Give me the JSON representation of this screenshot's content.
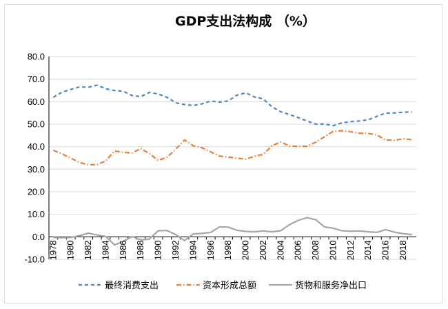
{
  "chart_data": {
    "type": "line",
    "title": "GDP支出法构成 （%）",
    "xlabel": "",
    "ylabel": "",
    "ylim": [
      -10,
      80
    ],
    "yticks": [
      "80.0",
      "70.0",
      "60.0",
      "50.0",
      "40.0",
      "30.0",
      "20.0",
      "10.0",
      "0.0",
      "-10.0"
    ],
    "xlim": [
      1978,
      2019
    ],
    "xticks": [
      "1978",
      "1980",
      "1982",
      "1984",
      "1986",
      "1988",
      "1990",
      "1992",
      "1994",
      "1996",
      "1998",
      "2000",
      "2002",
      "2004",
      "2006",
      "2008",
      "2010",
      "2012",
      "2014",
      "2016",
      "2018"
    ],
    "grid": "horizontal",
    "legend_position": "bottom",
    "x": [
      1978,
      1979,
      1980,
      1981,
      1982,
      1983,
      1984,
      1985,
      1986,
      1987,
      1988,
      1989,
      1990,
      1991,
      1992,
      1993,
      1994,
      1995,
      1996,
      1997,
      1998,
      1999,
      2000,
      2001,
      2002,
      2003,
      2004,
      2005,
      2006,
      2007,
      2008,
      2009,
      2010,
      2011,
      2012,
      2013,
      2014,
      2015,
      2016,
      2017,
      2018,
      2019
    ],
    "series": [
      {
        "name": "最终消费支出",
        "color": "#4a86c8",
        "dash": "dashed",
        "values": [
          61.9,
          64.2,
          65.4,
          66.5,
          66.4,
          67.3,
          65.7,
          64.9,
          64.6,
          62.7,
          62.2,
          64.1,
          63.4,
          61.9,
          59.5,
          58.7,
          58.3,
          59.0,
          60.3,
          59.8,
          60.3,
          62.9,
          63.9,
          62.1,
          61.2,
          57.7,
          55.5,
          54.3,
          52.9,
          51.4,
          50.0,
          50.1,
          49.3,
          50.6,
          51.1,
          51.4,
          51.9,
          53.5,
          54.9,
          55.0,
          55.3,
          55.4
        ]
      },
      {
        "name": "资本形成总额",
        "color": "#ed7d31",
        "dash": "dashdot",
        "values": [
          38.4,
          36.8,
          34.9,
          33.0,
          32.0,
          32.0,
          33.7,
          38.1,
          37.5,
          37.2,
          39.2,
          36.9,
          33.9,
          35.3,
          38.9,
          43.0,
          40.4,
          39.5,
          37.7,
          35.8,
          35.4,
          34.9,
          34.5,
          35.7,
          36.6,
          40.4,
          42.1,
          40.3,
          40.1,
          40.2,
          42.0,
          44.4,
          46.8,
          47.1,
          46.6,
          46.0,
          45.9,
          45.2,
          43.0,
          42.8,
          43.5,
          43.1
        ]
      },
      {
        "name": "货物和服务净出口",
        "color": "#a5a5a5",
        "dash": "solid",
        "values": [
          -0.3,
          -0.4,
          -0.3,
          0.5,
          1.6,
          0.8,
          0.1,
          -3.6,
          -2.0,
          0.1,
          -1.4,
          -1.0,
          2.7,
          2.8,
          1.0,
          -1.7,
          1.3,
          1.5,
          2.0,
          4.4,
          4.3,
          2.9,
          2.4,
          2.2,
          2.6,
          2.2,
          2.7,
          5.4,
          7.3,
          8.5,
          7.6,
          4.4,
          3.8,
          2.7,
          2.5,
          2.6,
          2.2,
          2.0,
          3.2,
          2.1,
          1.4,
          0.9
        ]
      }
    ]
  }
}
